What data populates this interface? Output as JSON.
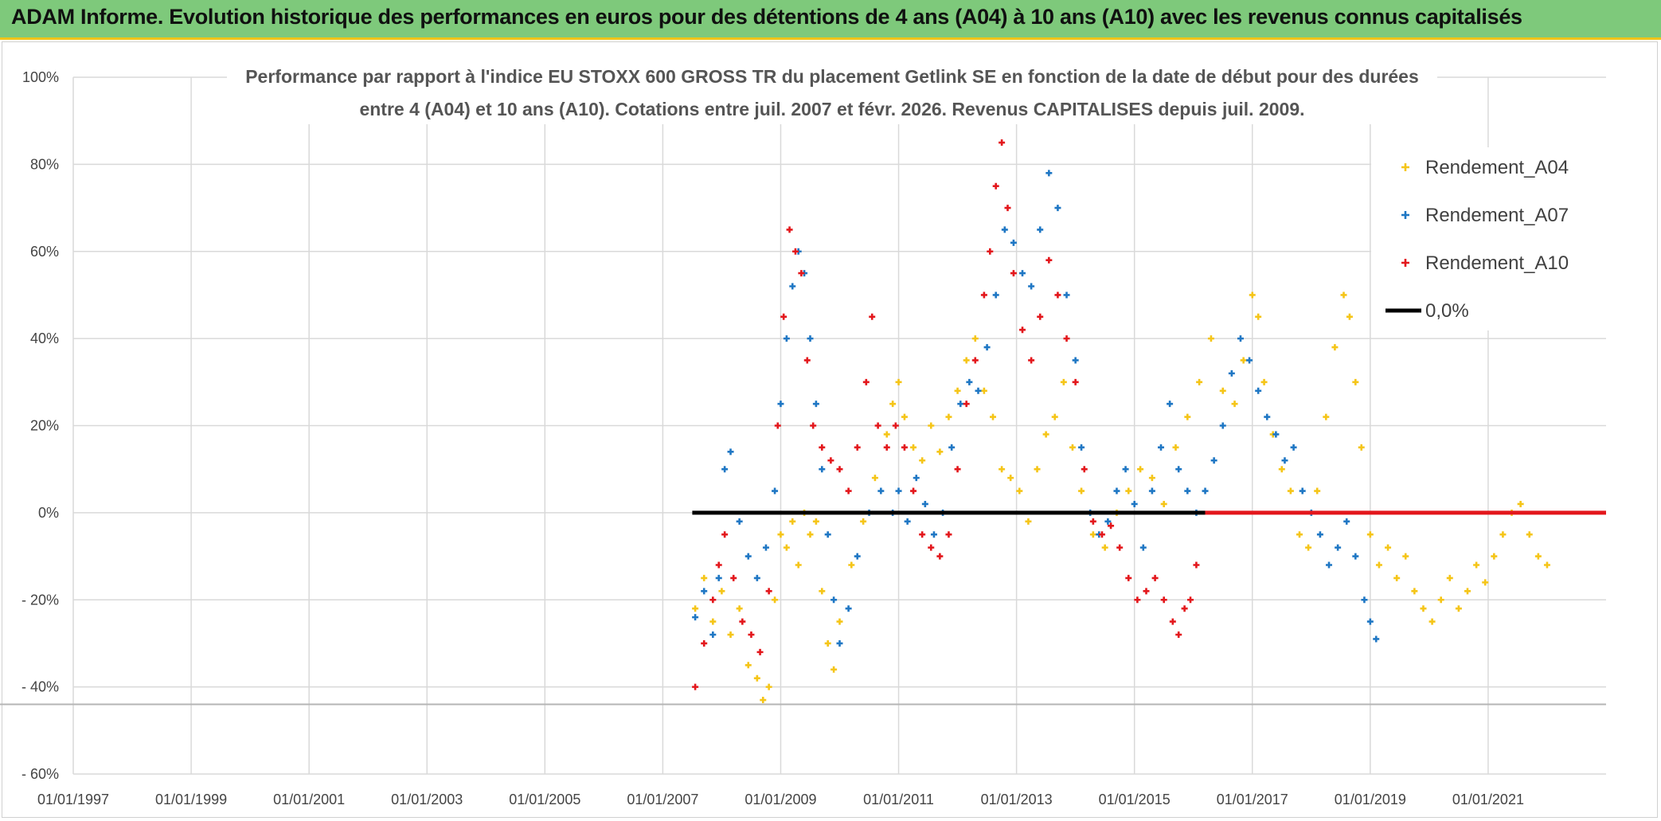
{
  "banner": {
    "title": "ADAM Informe. Evolution historique des performances en euros pour des détentions de 4 ans (A04) à 10 ans (A10) avec les revenus connus capitalisés"
  },
  "chart_data": {
    "type": "scatter",
    "title_line1": "Performance par rapport à l'indice EU STOXX 600 GROSS TR  du placement Getlink SE en fonction de la date de début pour des durées",
    "title_line2": "entre 4 (A04) et 10 ans (A10). Cotations entre juil. 2007 et févr. 2026. Revenus CAPITALISES depuis juil. 2009.",
    "xlim": [
      1997.0,
      2023.0
    ],
    "ylim": [
      -60,
      100
    ],
    "x_ticks": [
      {
        "value": 1997.0,
        "label": "01/01/1997"
      },
      {
        "value": 1999.0,
        "label": "01/01/1999"
      },
      {
        "value": 2001.0,
        "label": "01/01/2001"
      },
      {
        "value": 2003.0,
        "label": "01/01/2003"
      },
      {
        "value": 2005.0,
        "label": "01/01/2005"
      },
      {
        "value": 2007.0,
        "label": "01/01/2007"
      },
      {
        "value": 2009.0,
        "label": "01/01/2009"
      },
      {
        "value": 2011.0,
        "label": "01/01/2011"
      },
      {
        "value": 2013.0,
        "label": "01/01/2013"
      },
      {
        "value": 2015.0,
        "label": "01/01/2015"
      },
      {
        "value": 2017.0,
        "label": "01/01/2017"
      },
      {
        "value": 2019.0,
        "label": "01/01/2019"
      },
      {
        "value": 2021.0,
        "label": "01/01/2021"
      }
    ],
    "y_ticks": [
      {
        "value": 100,
        "label": "100%"
      },
      {
        "value": 80,
        "label": "80%"
      },
      {
        "value": 60,
        "label": "60%"
      },
      {
        "value": 40,
        "label": "40%"
      },
      {
        "value": 20,
        "label": "20%"
      },
      {
        "value": 0,
        "label": "0%"
      },
      {
        "value": -20,
        "label": "- 20%"
      },
      {
        "value": -40,
        "label": "- 40%"
      },
      {
        "value": -60,
        "label": "- 60%"
      }
    ],
    "reference_line": {
      "value": -44
    },
    "legend_position": "top-right",
    "series": [
      {
        "name": "Rendement_A04",
        "color": "#f5c518",
        "marker": "+",
        "points": [
          [
            2007.55,
            -22
          ],
          [
            2007.7,
            -15
          ],
          [
            2007.85,
            -25
          ],
          [
            2008.0,
            -18
          ],
          [
            2008.15,
            -28
          ],
          [
            2008.3,
            -22
          ],
          [
            2008.45,
            -35
          ],
          [
            2008.6,
            -38
          ],
          [
            2008.7,
            -43
          ],
          [
            2008.8,
            -40
          ],
          [
            2008.9,
            -20
          ],
          [
            2009.0,
            -5
          ],
          [
            2009.1,
            -8
          ],
          [
            2009.2,
            -2
          ],
          [
            2009.3,
            -12
          ],
          [
            2009.4,
            0
          ],
          [
            2009.5,
            -5
          ],
          [
            2009.6,
            -2
          ],
          [
            2009.7,
            -18
          ],
          [
            2009.8,
            -30
          ],
          [
            2009.9,
            -36
          ],
          [
            2010.0,
            -25
          ],
          [
            2010.2,
            -12
          ],
          [
            2010.4,
            -2
          ],
          [
            2010.6,
            8
          ],
          [
            2010.8,
            18
          ],
          [
            2010.9,
            25
          ],
          [
            2011.0,
            30
          ],
          [
            2011.1,
            22
          ],
          [
            2011.25,
            15
          ],
          [
            2011.4,
            12
          ],
          [
            2011.55,
            20
          ],
          [
            2011.7,
            14
          ],
          [
            2011.85,
            22
          ],
          [
            2012.0,
            28
          ],
          [
            2012.15,
            35
          ],
          [
            2012.3,
            40
          ],
          [
            2012.45,
            28
          ],
          [
            2012.6,
            22
          ],
          [
            2012.75,
            10
          ],
          [
            2012.9,
            8
          ],
          [
            2013.05,
            5
          ],
          [
            2013.2,
            -2
          ],
          [
            2013.35,
            10
          ],
          [
            2013.5,
            18
          ],
          [
            2013.65,
            22
          ],
          [
            2013.8,
            30
          ],
          [
            2013.95,
            15
          ],
          [
            2014.1,
            5
          ],
          [
            2014.3,
            -5
          ],
          [
            2014.5,
            -8
          ],
          [
            2014.7,
            0
          ],
          [
            2014.9,
            5
          ],
          [
            2015.1,
            10
          ],
          [
            2015.3,
            8
          ],
          [
            2015.5,
            2
          ],
          [
            2015.7,
            15
          ],
          [
            2015.9,
            22
          ],
          [
            2016.1,
            30
          ],
          [
            2016.3,
            40
          ],
          [
            2016.5,
            28
          ],
          [
            2016.7,
            25
          ],
          [
            2016.85,
            35
          ],
          [
            2017.0,
            50
          ],
          [
            2017.1,
            45
          ],
          [
            2017.2,
            30
          ],
          [
            2017.35,
            18
          ],
          [
            2017.5,
            10
          ],
          [
            2017.65,
            5
          ],
          [
            2017.8,
            -5
          ],
          [
            2017.95,
            -8
          ],
          [
            2018.1,
            5
          ],
          [
            2018.25,
            22
          ],
          [
            2018.4,
            38
          ],
          [
            2018.55,
            50
          ],
          [
            2018.65,
            45
          ],
          [
            2018.75,
            30
          ],
          [
            2018.85,
            15
          ],
          [
            2019.0,
            -5
          ],
          [
            2019.15,
            -12
          ],
          [
            2019.3,
            -8
          ],
          [
            2019.45,
            -15
          ],
          [
            2019.6,
            -10
          ],
          [
            2019.75,
            -18
          ],
          [
            2019.9,
            -22
          ],
          [
            2020.05,
            -25
          ],
          [
            2020.2,
            -20
          ],
          [
            2020.35,
            -15
          ],
          [
            2020.5,
            -22
          ],
          [
            2020.65,
            -18
          ],
          [
            2020.8,
            -12
          ],
          [
            2020.95,
            -16
          ],
          [
            2021.1,
            -10
          ],
          [
            2021.25,
            -5
          ],
          [
            2021.4,
            0
          ],
          [
            2021.55,
            2
          ],
          [
            2021.7,
            -5
          ],
          [
            2021.85,
            -10
          ],
          [
            2022.0,
            -12
          ]
        ]
      },
      {
        "name": "Rendement_A07",
        "color": "#1f77c4",
        "marker": "+",
        "points": [
          [
            2007.55,
            -24
          ],
          [
            2007.7,
            -18
          ],
          [
            2007.85,
            -28
          ],
          [
            2007.95,
            -15
          ],
          [
            2008.05,
            10
          ],
          [
            2008.15,
            14
          ],
          [
            2008.3,
            -2
          ],
          [
            2008.45,
            -10
          ],
          [
            2008.6,
            -15
          ],
          [
            2008.75,
            -8
          ],
          [
            2008.9,
            5
          ],
          [
            2009.0,
            25
          ],
          [
            2009.1,
            40
          ],
          [
            2009.2,
            52
          ],
          [
            2009.3,
            60
          ],
          [
            2009.4,
            55
          ],
          [
            2009.5,
            40
          ],
          [
            2009.6,
            25
          ],
          [
            2009.7,
            10
          ],
          [
            2009.8,
            -5
          ],
          [
            2009.9,
            -20
          ],
          [
            2010.0,
            -30
          ],
          [
            2010.15,
            -22
          ],
          [
            2010.3,
            -10
          ],
          [
            2010.5,
            0
          ],
          [
            2010.7,
            5
          ],
          [
            2010.9,
            0
          ],
          [
            2011.0,
            5
          ],
          [
            2011.15,
            -2
          ],
          [
            2011.3,
            8
          ],
          [
            2011.45,
            2
          ],
          [
            2011.6,
            -5
          ],
          [
            2011.75,
            0
          ],
          [
            2011.9,
            15
          ],
          [
            2012.05,
            25
          ],
          [
            2012.2,
            30
          ],
          [
            2012.35,
            28
          ],
          [
            2012.5,
            38
          ],
          [
            2012.65,
            50
          ],
          [
            2012.8,
            65
          ],
          [
            2012.95,
            62
          ],
          [
            2013.1,
            55
          ],
          [
            2013.25,
            52
          ],
          [
            2013.4,
            65
          ],
          [
            2013.55,
            78
          ],
          [
            2013.7,
            70
          ],
          [
            2013.85,
            50
          ],
          [
            2014.0,
            35
          ],
          [
            2014.1,
            15
          ],
          [
            2014.25,
            0
          ],
          [
            2014.4,
            -5
          ],
          [
            2014.55,
            -2
          ],
          [
            2014.7,
            5
          ],
          [
            2014.85,
            10
          ],
          [
            2015.0,
            2
          ],
          [
            2015.15,
            -8
          ],
          [
            2015.3,
            5
          ],
          [
            2015.45,
            15
          ],
          [
            2015.6,
            25
          ],
          [
            2015.75,
            10
          ],
          [
            2015.9,
            5
          ],
          [
            2016.05,
            0
          ],
          [
            2016.2,
            5
          ],
          [
            2016.35,
            12
          ],
          [
            2016.5,
            20
          ],
          [
            2016.65,
            32
          ],
          [
            2016.8,
            40
          ],
          [
            2016.95,
            35
          ],
          [
            2017.1,
            28
          ],
          [
            2017.25,
            22
          ],
          [
            2017.4,
            18
          ],
          [
            2017.55,
            12
          ],
          [
            2017.7,
            15
          ],
          [
            2017.85,
            5
          ],
          [
            2018.0,
            0
          ],
          [
            2018.15,
            -5
          ],
          [
            2018.3,
            -12
          ],
          [
            2018.45,
            -8
          ],
          [
            2018.6,
            -2
          ],
          [
            2018.75,
            -10
          ],
          [
            2018.9,
            -20
          ],
          [
            2019.0,
            -25
          ],
          [
            2019.1,
            -29
          ]
        ]
      },
      {
        "name": "Rendement_A10",
        "color": "#e3171c",
        "marker": "+",
        "points": [
          [
            2007.55,
            -40
          ],
          [
            2007.7,
            -30
          ],
          [
            2007.85,
            -20
          ],
          [
            2007.95,
            -12
          ],
          [
            2008.05,
            -5
          ],
          [
            2008.2,
            -15
          ],
          [
            2008.35,
            -25
          ],
          [
            2008.5,
            -28
          ],
          [
            2008.65,
            -32
          ],
          [
            2008.8,
            -18
          ],
          [
            2008.95,
            20
          ],
          [
            2009.05,
            45
          ],
          [
            2009.15,
            65
          ],
          [
            2009.25,
            60
          ],
          [
            2009.35,
            55
          ],
          [
            2009.45,
            35
          ],
          [
            2009.55,
            20
          ],
          [
            2009.7,
            15
          ],
          [
            2009.85,
            12
          ],
          [
            2010.0,
            10
          ],
          [
            2010.15,
            5
          ],
          [
            2010.3,
            15
          ],
          [
            2010.45,
            30
          ],
          [
            2010.55,
            45
          ],
          [
            2010.65,
            20
          ],
          [
            2010.8,
            15
          ],
          [
            2010.95,
            20
          ],
          [
            2011.1,
            15
          ],
          [
            2011.25,
            5
          ],
          [
            2011.4,
            -5
          ],
          [
            2011.55,
            -8
          ],
          [
            2011.7,
            -10
          ],
          [
            2011.85,
            -5
          ],
          [
            2012.0,
            10
          ],
          [
            2012.15,
            25
          ],
          [
            2012.3,
            35
          ],
          [
            2012.45,
            50
          ],
          [
            2012.55,
            60
          ],
          [
            2012.65,
            75
          ],
          [
            2012.75,
            85
          ],
          [
            2012.85,
            70
          ],
          [
            2012.95,
            55
          ],
          [
            2013.1,
            42
          ],
          [
            2013.25,
            35
          ],
          [
            2013.4,
            45
          ],
          [
            2013.55,
            58
          ],
          [
            2013.7,
            50
          ],
          [
            2013.85,
            40
          ],
          [
            2014.0,
            30
          ],
          [
            2014.15,
            10
          ],
          [
            2014.3,
            -2
          ],
          [
            2014.45,
            -5
          ],
          [
            2014.6,
            -3
          ],
          [
            2014.75,
            -8
          ],
          [
            2014.9,
            -15
          ],
          [
            2015.05,
            -20
          ],
          [
            2015.2,
            -18
          ],
          [
            2015.35,
            -15
          ],
          [
            2015.5,
            -20
          ],
          [
            2015.65,
            -25
          ],
          [
            2015.75,
            -28
          ],
          [
            2015.85,
            -22
          ],
          [
            2015.95,
            -20
          ],
          [
            2016.05,
            -12
          ]
        ]
      }
    ],
    "zero_line_segments": [
      {
        "name": "0,0%",
        "color": "#000000",
        "from": 2007.5,
        "to": 2016.2
      },
      {
        "name": "Rendement_A10 (0%)",
        "color": "#e3171c",
        "from": 2016.2,
        "to": 2023.0
      }
    ],
    "legend": [
      {
        "label": "Rendement_A04",
        "color": "#f5c518",
        "kind": "marker"
      },
      {
        "label": "Rendement_A07",
        "color": "#1f77c4",
        "kind": "marker"
      },
      {
        "label": "Rendement_A10",
        "color": "#e3171c",
        "kind": "marker"
      },
      {
        "label": "0,0%",
        "color": "#000000",
        "kind": "line"
      }
    ]
  }
}
